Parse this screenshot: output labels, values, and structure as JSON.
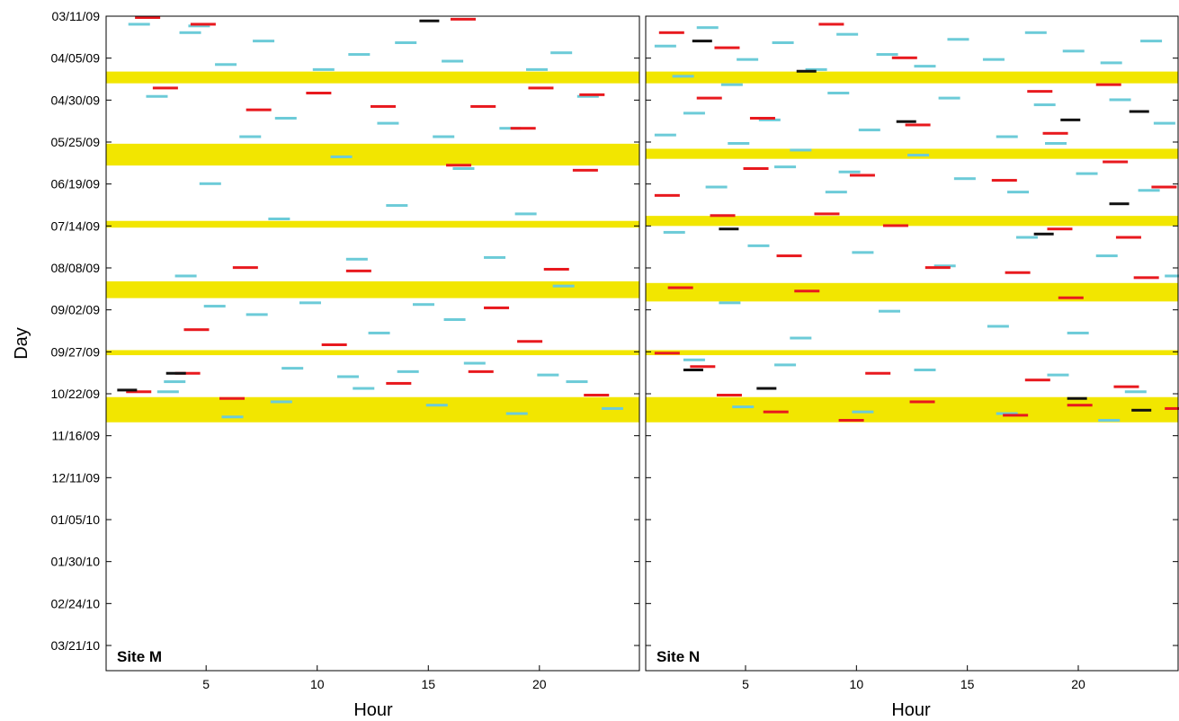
{
  "chart_data": {
    "type": "heatmap",
    "ylabel": "Day",
    "xlabel": "Hour",
    "y_ticks": [
      "03/11/09",
      "04/05/09",
      "04/30/09",
      "05/25/09",
      "06/19/09",
      "07/14/09",
      "08/08/09",
      "09/02/09",
      "09/27/09",
      "10/22/09",
      "11/16/09",
      "12/11/09",
      "01/05/10",
      "01/30/10",
      "02/24/10",
      "03/21/10"
    ],
    "x_ticks": [
      5,
      10,
      15,
      20
    ],
    "xlim": [
      0.5,
      24.5
    ],
    "y_range_days": [
      0,
      390
    ],
    "y_tick_step_days": 25,
    "colors": {
      "no_data": "#f2e600",
      "cyan": "#6ccbd8",
      "red": "#e8191e",
      "black": "#111111",
      "background": "#ffffff"
    },
    "panels": [
      {
        "name": "Site M",
        "gap_periods_days": [
          [
            33,
            40
          ],
          [
            76,
            89
          ],
          [
            122,
            126
          ],
          [
            158,
            168
          ],
          [
            199,
            202
          ],
          [
            227,
            242
          ]
        ],
        "cyan_marks": [
          [
            1.5,
            4
          ],
          [
            4.2,
            5
          ],
          [
            13.5,
            15
          ],
          [
            20.5,
            21
          ],
          [
            3.8,
            9
          ],
          [
            7.1,
            14
          ],
          [
            11.4,
            22
          ],
          [
            15.6,
            26
          ],
          [
            5.4,
            28
          ],
          [
            9.8,
            31
          ],
          [
            19.4,
            31
          ],
          [
            2.3,
            47
          ],
          [
            8.1,
            60
          ],
          [
            12.7,
            63
          ],
          [
            18.2,
            66
          ],
          [
            6.5,
            71
          ],
          [
            15.2,
            71
          ],
          [
            21.7,
            47
          ],
          [
            10.6,
            83
          ],
          [
            16.1,
            90
          ],
          [
            4.7,
            99
          ],
          [
            13.1,
            112
          ],
          [
            18.9,
            117
          ],
          [
            7.8,
            120
          ],
          [
            11.3,
            144
          ],
          [
            17.5,
            143
          ],
          [
            3.6,
            154
          ],
          [
            20.6,
            160
          ],
          [
            9.2,
            170
          ],
          [
            14.3,
            171
          ],
          [
            4.9,
            172
          ],
          [
            6.8,
            177
          ],
          [
            15.7,
            180
          ],
          [
            12.3,
            188
          ],
          [
            16.6,
            206
          ],
          [
            8.4,
            209
          ],
          [
            19.9,
            213
          ],
          [
            3.1,
            217
          ],
          [
            11.6,
            221
          ],
          [
            7.9,
            229
          ],
          [
            14.9,
            231
          ],
          [
            22.8,
            233
          ],
          [
            18.5,
            236
          ],
          [
            5.7,
            238
          ],
          [
            13.6,
            211
          ],
          [
            21.2,
            217
          ],
          [
            2.8,
            223
          ],
          [
            10.9,
            214
          ]
        ],
        "red_marks": [
          [
            1.8,
            0
          ],
          [
            4.3,
            4
          ],
          [
            16,
            1
          ],
          [
            19.5,
            42
          ],
          [
            2.6,
            42
          ],
          [
            9.5,
            45
          ],
          [
            21.8,
            46
          ],
          [
            12.4,
            53
          ],
          [
            16.9,
            53
          ],
          [
            6.8,
            55
          ],
          [
            18.7,
            66
          ],
          [
            21.5,
            91
          ],
          [
            15.8,
            88
          ],
          [
            11.3,
            151
          ],
          [
            20.2,
            150
          ],
          [
            6.2,
            149
          ],
          [
            4,
            186
          ],
          [
            10.2,
            195
          ],
          [
            17.5,
            173
          ],
          [
            19,
            193
          ],
          [
            16.8,
            211
          ],
          [
            3.6,
            212
          ],
          [
            13.1,
            218
          ],
          [
            1.4,
            223
          ],
          [
            22,
            225
          ],
          [
            5.6,
            227
          ]
        ],
        "black_marks": [
          [
            14.6,
            2
          ],
          [
            1,
            222
          ],
          [
            3.2,
            212
          ]
        ]
      },
      {
        "name": "Site N",
        "gap_periods_days": [
          [
            33,
            40
          ],
          [
            79,
            85
          ],
          [
            119,
            125
          ],
          [
            159,
            170
          ],
          [
            199,
            202
          ],
          [
            227,
            242
          ]
        ],
        "cyan_marks": [
          [
            0.9,
            17
          ],
          [
            2.8,
            6
          ],
          [
            4.6,
            25
          ],
          [
            6.2,
            15
          ],
          [
            7.7,
            31
          ],
          [
            9.1,
            10
          ],
          [
            10.9,
            22
          ],
          [
            12.6,
            29
          ],
          [
            14.1,
            13
          ],
          [
            15.7,
            25
          ],
          [
            17.6,
            9
          ],
          [
            19.3,
            20
          ],
          [
            21,
            27
          ],
          [
            22.8,
            14
          ],
          [
            1.7,
            35
          ],
          [
            3.9,
            40
          ],
          [
            8.7,
            45
          ],
          [
            13.7,
            48
          ],
          [
            18,
            52
          ],
          [
            21.4,
            49
          ],
          [
            2.2,
            57
          ],
          [
            5.6,
            61
          ],
          [
            10.1,
            67
          ],
          [
            16.3,
            71
          ],
          [
            23.4,
            63
          ],
          [
            0.9,
            70
          ],
          [
            4.2,
            75
          ],
          [
            7,
            79
          ],
          [
            12.3,
            82
          ],
          [
            18.5,
            75
          ],
          [
            6.3,
            89
          ],
          [
            9.2,
            92
          ],
          [
            14.4,
            96
          ],
          [
            19.9,
            93
          ],
          [
            3.2,
            101
          ],
          [
            8.6,
            104
          ],
          [
            16.8,
            104
          ],
          [
            22.7,
            103
          ],
          [
            1.3,
            128
          ],
          [
            5.1,
            136
          ],
          [
            9.8,
            140
          ],
          [
            13.5,
            148
          ],
          [
            17.2,
            131
          ],
          [
            20.8,
            142
          ],
          [
            23.9,
            154
          ],
          [
            3.8,
            170
          ],
          [
            11,
            175
          ],
          [
            15.9,
            184
          ],
          [
            19.5,
            188
          ],
          [
            7,
            191
          ],
          [
            2.2,
            204
          ],
          [
            6.3,
            207
          ],
          [
            12.6,
            210
          ],
          [
            18.6,
            213
          ],
          [
            22.1,
            223
          ],
          [
            4.4,
            232
          ],
          [
            9.8,
            235
          ],
          [
            16.3,
            236
          ],
          [
            20.9,
            240
          ]
        ],
        "red_marks": [
          [
            1.1,
            9
          ],
          [
            3.6,
            18
          ],
          [
            8.3,
            4
          ],
          [
            11.6,
            24
          ],
          [
            17.7,
            44
          ],
          [
            20.8,
            40
          ],
          [
            2.8,
            48
          ],
          [
            5.2,
            60
          ],
          [
            12.2,
            64
          ],
          [
            18.4,
            69
          ],
          [
            21.1,
            86
          ],
          [
            4.9,
            90
          ],
          [
            9.7,
            94
          ],
          [
            16.1,
            97
          ],
          [
            23.3,
            101
          ],
          [
            0.9,
            106
          ],
          [
            3.4,
            118
          ],
          [
            8.1,
            117
          ],
          [
            11.2,
            124
          ],
          [
            18.6,
            126
          ],
          [
            21.7,
            131
          ],
          [
            6.4,
            142
          ],
          [
            13.1,
            149
          ],
          [
            16.7,
            152
          ],
          [
            22.5,
            155
          ],
          [
            1.5,
            161
          ],
          [
            7.2,
            163
          ],
          [
            19.1,
            167
          ],
          [
            0.9,
            200
          ],
          [
            2.5,
            208
          ],
          [
            10.4,
            212
          ],
          [
            17.6,
            216
          ],
          [
            21.6,
            220
          ],
          [
            3.7,
            225
          ],
          [
            12.4,
            229
          ],
          [
            19.5,
            231
          ],
          [
            23.9,
            233
          ],
          [
            5.8,
            235
          ],
          [
            9.2,
            240
          ],
          [
            16.6,
            237
          ]
        ],
        "black_marks": [
          [
            2.6,
            14
          ],
          [
            7.3,
            32
          ],
          [
            19.2,
            61
          ],
          [
            22.3,
            56
          ],
          [
            11.8,
            62
          ],
          [
            3.8,
            126
          ],
          [
            18,
            129
          ],
          [
            21.4,
            111
          ],
          [
            2.2,
            210
          ],
          [
            5.5,
            221
          ],
          [
            19.5,
            227
          ],
          [
            22.4,
            234
          ]
        ]
      }
    ]
  }
}
